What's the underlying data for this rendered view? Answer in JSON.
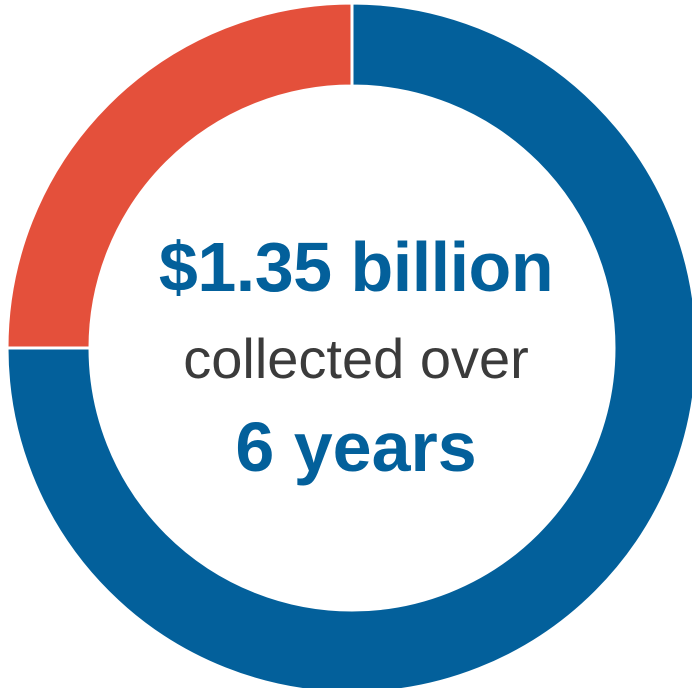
{
  "center_label": {
    "amount": "$1.35 billion",
    "middle": "collected over",
    "duration": "6 years"
  },
  "chart_data": {
    "type": "pie",
    "style": "donut",
    "start_angle_deg": 0,
    "direction": "clockwise",
    "slices": [
      {
        "value": 75,
        "color": "#03609b"
      },
      {
        "value": 25,
        "color": "#e4503b"
      }
    ]
  }
}
